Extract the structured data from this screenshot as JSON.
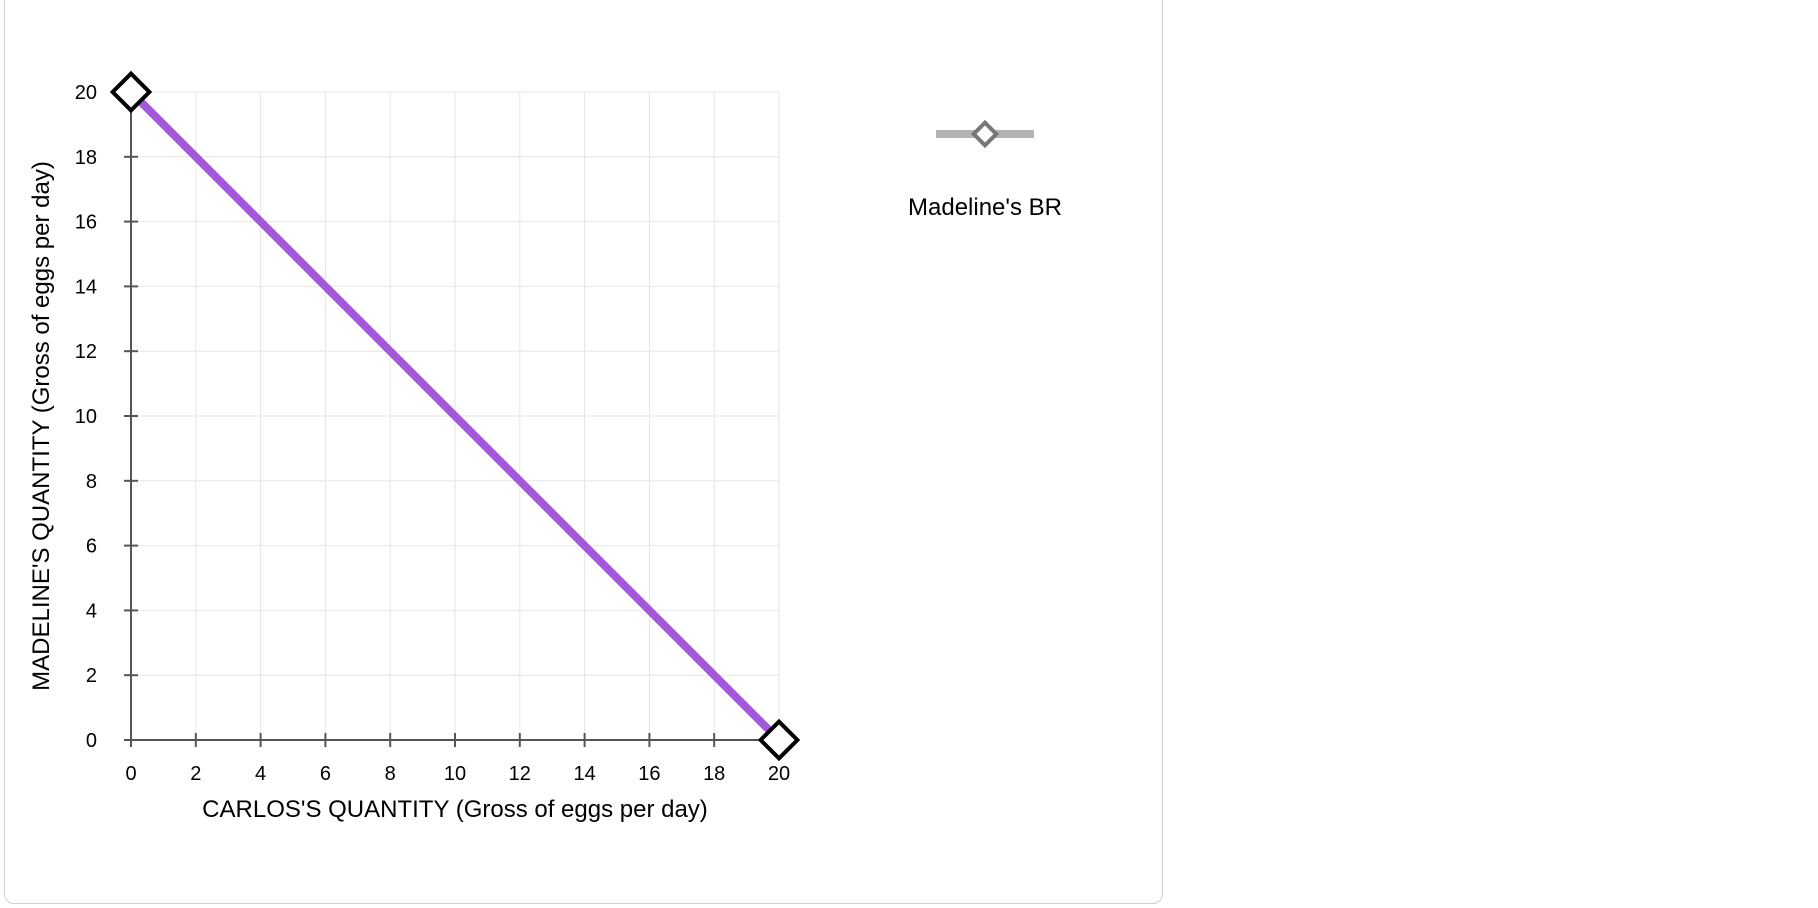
{
  "chart_data": {
    "type": "line",
    "xlabel": "CARLOS'S QUANTITY (Gross of eggs per day)",
    "ylabel": "MADELINE'S QUANTITY (Gross of eggs per day)",
    "xlim": [
      0,
      20
    ],
    "ylim": [
      0,
      20
    ],
    "xticks": [
      "0",
      "2",
      "4",
      "6",
      "8",
      "10",
      "12",
      "14",
      "16",
      "18",
      "20"
    ],
    "yticks": [
      "0",
      "2",
      "4",
      "6",
      "8",
      "10",
      "12",
      "14",
      "16",
      "18",
      "20"
    ],
    "grid": true,
    "legend_position": "right",
    "series": [
      {
        "name": "Madeline's BR",
        "color": "#a259d9",
        "marker": "diamond",
        "points": [
          {
            "x": 0,
            "y": 20
          },
          {
            "x": 20,
            "y": 0
          }
        ]
      }
    ]
  },
  "legend": {
    "label": "Madeline's BR",
    "line_color": "#b3b3b3",
    "marker_color": "#777777"
  }
}
